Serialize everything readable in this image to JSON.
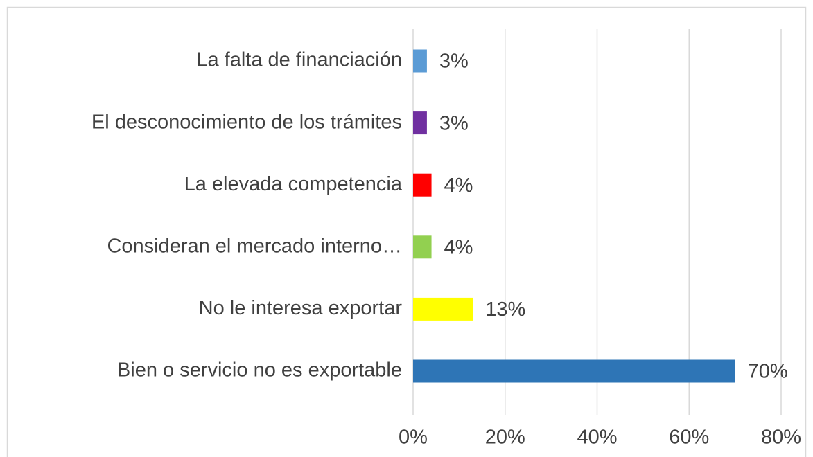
{
  "chart_data": {
    "type": "bar",
    "orientation": "horizontal",
    "categories": [
      "La falta de financiación",
      "El desconocimiento de los trámites",
      "La elevada competencia",
      "Consideran el mercado interno…",
      "No le interesa exportar",
      "Bien o servicio no es exportable"
    ],
    "values": [
      3,
      3,
      4,
      4,
      13,
      70
    ],
    "value_labels": [
      "3%",
      "3%",
      "4%",
      "4%",
      "13%",
      "70%"
    ],
    "colors": [
      "#5b9bd5",
      "#7030a0",
      "#ff0000",
      "#92d050",
      "#ffff00",
      "#2e75b6"
    ],
    "xlim": [
      0,
      80
    ],
    "xticks": [
      {
        "value": 0,
        "label": "0%"
      },
      {
        "value": 20,
        "label": "20%"
      },
      {
        "value": 40,
        "label": "40%"
      },
      {
        "value": 60,
        "label": "60%"
      },
      {
        "value": 80,
        "label": "80%"
      }
    ],
    "grid": true
  }
}
